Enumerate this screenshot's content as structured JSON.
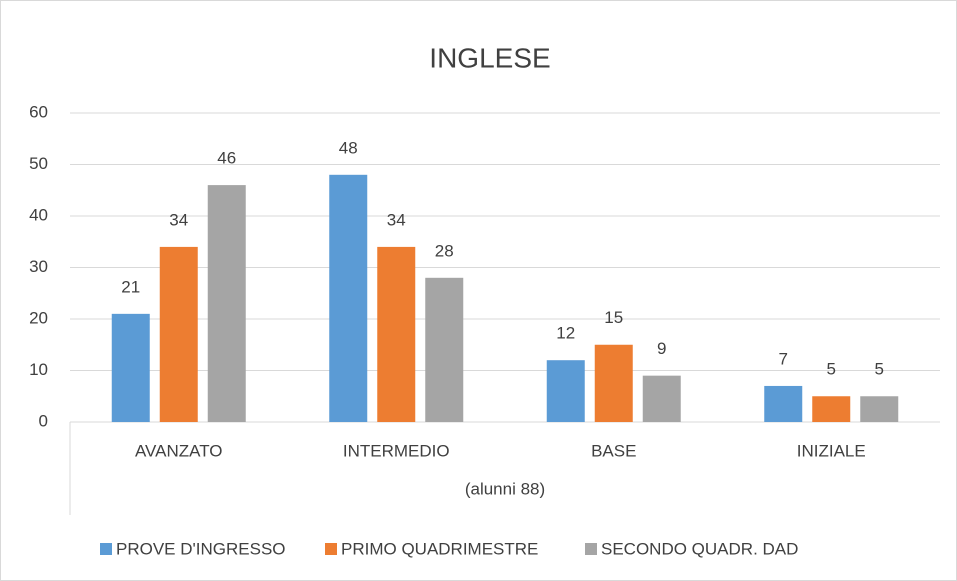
{
  "chart_data": {
    "type": "bar",
    "title": "INGLESE",
    "x_label": "(alunni 88)",
    "categories": [
      "AVANZATO",
      "INTERMEDIO",
      "BASE",
      "INIZIALE"
    ],
    "series": [
      {
        "name": "PROVE D'INGRESSO",
        "color": "#5b9bd5",
        "values": [
          21,
          48,
          12,
          7
        ]
      },
      {
        "name": "PRIMO QUADRIMESTRE",
        "color": "#ed7d31",
        "values": [
          34,
          34,
          15,
          5
        ]
      },
      {
        "name": "SECONDO QUADR. DAD",
        "color": "#a5a5a5",
        "values": [
          46,
          28,
          9,
          5
        ]
      }
    ],
    "ylim": [
      0,
      60
    ],
    "yticks": [
      0,
      10,
      20,
      30,
      40,
      50,
      60
    ],
    "grid": true,
    "legend": "bottom"
  }
}
